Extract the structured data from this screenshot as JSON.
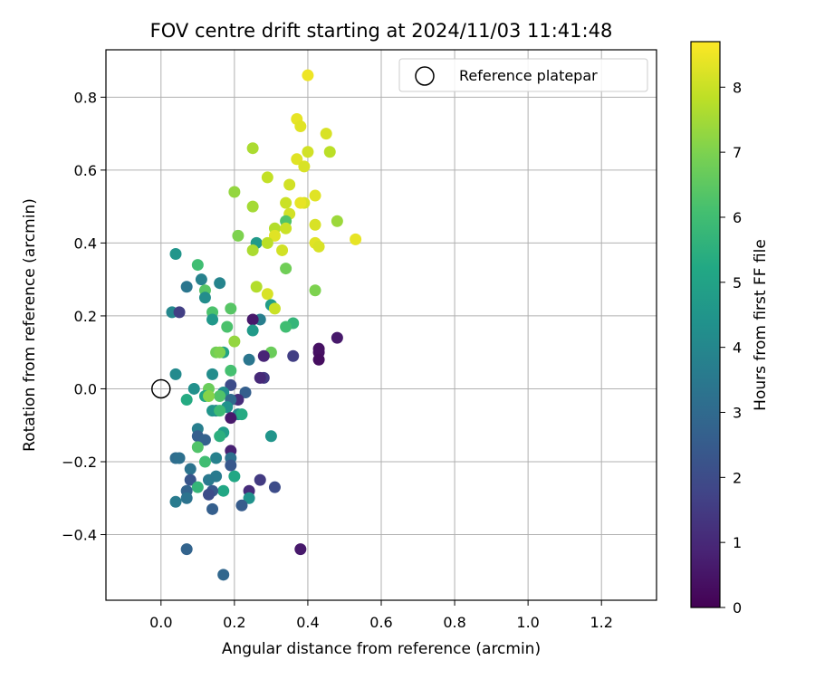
{
  "chart_data": {
    "type": "scatter",
    "title": "FOV centre drift starting at 2024/11/03 11:41:48",
    "xlabel": "Angular distance from reference (arcmin)",
    "ylabel": "Rotation from reference (arcmin)",
    "xlim": [
      -0.15,
      1.35
    ],
    "ylim": [
      -0.58,
      0.93
    ],
    "xticks": [
      0.0,
      0.2,
      0.4,
      0.6,
      0.8,
      1.0,
      1.2
    ],
    "xtick_labels": [
      "0.0",
      "0.2",
      "0.4",
      "0.6",
      "0.8",
      "1.0",
      "1.2"
    ],
    "yticks": [
      -0.4,
      -0.2,
      0.0,
      0.2,
      0.4,
      0.6,
      0.8
    ],
    "ytick_labels": [
      "−0.4",
      "−0.2",
      "0.0",
      "0.2",
      "0.4",
      "0.6",
      "0.8"
    ],
    "grid": true,
    "legend": {
      "position": "top-right",
      "entries": [
        "Reference platepar"
      ]
    },
    "colorbar": {
      "label": "Hours from first FF file",
      "min": 0,
      "max": 8.7,
      "ticks": [
        0,
        1,
        2,
        3,
        4,
        5,
        6,
        7,
        8
      ],
      "tick_labels": [
        "0",
        "1",
        "2",
        "3",
        "4",
        "5",
        "6",
        "7",
        "8"
      ],
      "colormap": "viridis"
    },
    "reference": {
      "x": 0.0,
      "y": 0.0,
      "label": "Reference platepar"
    },
    "points": [
      [
        0.4,
        0.86,
        8.5
      ],
      [
        0.37,
        0.74,
        8.4
      ],
      [
        0.38,
        0.72,
        8.3
      ],
      [
        0.45,
        0.7,
        8.2
      ],
      [
        0.25,
        0.66,
        7.6
      ],
      [
        0.4,
        0.65,
        8.1
      ],
      [
        0.46,
        0.65,
        7.8
      ],
      [
        0.37,
        0.63,
        8.3
      ],
      [
        0.39,
        0.61,
        8.2
      ],
      [
        0.29,
        0.58,
        7.9
      ],
      [
        0.35,
        0.56,
        8.1
      ],
      [
        0.2,
        0.54,
        7.3
      ],
      [
        0.42,
        0.53,
        8.3
      ],
      [
        0.39,
        0.51,
        8.2
      ],
      [
        0.34,
        0.51,
        8.0
      ],
      [
        0.38,
        0.51,
        8.4
      ],
      [
        0.25,
        0.5,
        7.5
      ],
      [
        0.35,
        0.48,
        8.1
      ],
      [
        0.34,
        0.46,
        6.3
      ],
      [
        0.48,
        0.46,
        7.4
      ],
      [
        0.42,
        0.45,
        8.2
      ],
      [
        0.31,
        0.44,
        7.7
      ],
      [
        0.34,
        0.44,
        8.0
      ],
      [
        0.31,
        0.42,
        8.3
      ],
      [
        0.21,
        0.42,
        7.0
      ],
      [
        0.53,
        0.41,
        8.4
      ],
      [
        0.26,
        0.4,
        4.7
      ],
      [
        0.42,
        0.4,
        8.3
      ],
      [
        0.29,
        0.4,
        7.8
      ],
      [
        0.43,
        0.39,
        8.2
      ],
      [
        0.33,
        0.38,
        8.1
      ],
      [
        0.25,
        0.38,
        7.6
      ],
      [
        0.04,
        0.37,
        4.5
      ],
      [
        0.1,
        0.34,
        6.0
      ],
      [
        0.34,
        0.33,
        6.8
      ],
      [
        0.11,
        0.3,
        3.8
      ],
      [
        0.16,
        0.29,
        3.9
      ],
      [
        0.07,
        0.28,
        3.4
      ],
      [
        0.26,
        0.28,
        7.7
      ],
      [
        0.42,
        0.27,
        7.0
      ],
      [
        0.12,
        0.27,
        6.4
      ],
      [
        0.29,
        0.26,
        8.2
      ],
      [
        0.12,
        0.25,
        4.2
      ],
      [
        0.3,
        0.23,
        4.8
      ],
      [
        0.19,
        0.22,
        6.4
      ],
      [
        0.31,
        0.22,
        8.0
      ],
      [
        0.03,
        0.21,
        4.0
      ],
      [
        0.05,
        0.21,
        1.6
      ],
      [
        0.14,
        0.21,
        6.2
      ],
      [
        0.27,
        0.19,
        3.7
      ],
      [
        0.25,
        0.19,
        0.6
      ],
      [
        0.14,
        0.19,
        4.6
      ],
      [
        0.36,
        0.18,
        5.7
      ],
      [
        0.34,
        0.17,
        6.0
      ],
      [
        0.18,
        0.17,
        6.2
      ],
      [
        0.25,
        0.16,
        4.7
      ],
      [
        0.48,
        0.14,
        0.6
      ],
      [
        0.2,
        0.13,
        7.3
      ],
      [
        0.43,
        0.11,
        0.4
      ],
      [
        0.3,
        0.1,
        6.7
      ],
      [
        0.17,
        0.1,
        5.0
      ],
      [
        0.15,
        0.1,
        6.8
      ],
      [
        0.16,
        0.1,
        7.0
      ],
      [
        0.43,
        0.1,
        0.4
      ],
      [
        0.36,
        0.09,
        1.6
      ],
      [
        0.28,
        0.09,
        0.9
      ],
      [
        0.43,
        0.08,
        0.3
      ],
      [
        0.24,
        0.08,
        3.4
      ],
      [
        0.19,
        0.05,
        6.1
      ],
      [
        0.04,
        0.04,
        4.1
      ],
      [
        0.14,
        0.04,
        4.2
      ],
      [
        0.28,
        0.03,
        1.5
      ],
      [
        0.27,
        0.03,
        1.0
      ],
      [
        0.19,
        0.01,
        2.0
      ],
      [
        0.09,
        0.0,
        4.3
      ],
      [
        0.13,
        0.0,
        6.7
      ],
      [
        0.23,
        -0.01,
        2.6
      ],
      [
        0.17,
        -0.01,
        4.3
      ],
      [
        0.12,
        -0.02,
        5.1
      ],
      [
        0.16,
        -0.02,
        6.3
      ],
      [
        0.13,
        -0.02,
        7.1
      ],
      [
        0.07,
        -0.03,
        5.3
      ],
      [
        0.21,
        -0.03,
        1.1
      ],
      [
        0.19,
        -0.03,
        3.0
      ],
      [
        0.18,
        -0.05,
        4.4
      ],
      [
        0.15,
        -0.06,
        3.6
      ],
      [
        0.14,
        -0.06,
        4.5
      ],
      [
        0.16,
        -0.06,
        5.9
      ],
      [
        0.21,
        -0.07,
        4.0
      ],
      [
        0.22,
        -0.07,
        5.3
      ],
      [
        0.19,
        -0.08,
        0.6
      ],
      [
        0.1,
        -0.11,
        3.7
      ],
      [
        0.17,
        -0.12,
        4.8
      ],
      [
        0.16,
        -0.13,
        5.5
      ],
      [
        0.1,
        -0.13,
        2.6
      ],
      [
        0.3,
        -0.13,
        4.5
      ],
      [
        0.12,
        -0.14,
        2.7
      ],
      [
        0.1,
        -0.16,
        6.3
      ],
      [
        0.19,
        -0.17,
        0.8
      ],
      [
        0.04,
        -0.19,
        3.1
      ],
      [
        0.05,
        -0.19,
        3.2
      ],
      [
        0.15,
        -0.19,
        3.8
      ],
      [
        0.19,
        -0.19,
        3.2
      ],
      [
        0.12,
        -0.2,
        6.0
      ],
      [
        0.19,
        -0.21,
        2.4
      ],
      [
        0.08,
        -0.22,
        3.3
      ],
      [
        0.2,
        -0.24,
        5.2
      ],
      [
        0.15,
        -0.24,
        3.6
      ],
      [
        0.13,
        -0.25,
        3.5
      ],
      [
        0.27,
        -0.25,
        1.5
      ],
      [
        0.08,
        -0.25,
        2.3
      ],
      [
        0.1,
        -0.27,
        5.7
      ],
      [
        0.31,
        -0.27,
        2.0
      ],
      [
        0.17,
        -0.28,
        5.2
      ],
      [
        0.24,
        -0.28,
        1.1
      ],
      [
        0.07,
        -0.28,
        2.8
      ],
      [
        0.14,
        -0.28,
        2.4
      ],
      [
        0.13,
        -0.29,
        2.0
      ],
      [
        0.07,
        -0.3,
        3.3
      ],
      [
        0.24,
        -0.3,
        4.4
      ],
      [
        0.04,
        -0.31,
        3.6
      ],
      [
        0.22,
        -0.32,
        2.5
      ],
      [
        0.14,
        -0.33,
        2.6
      ],
      [
        0.38,
        -0.44,
        0.6
      ],
      [
        0.07,
        -0.44,
        2.8
      ],
      [
        0.17,
        -0.51,
        2.9
      ]
    ]
  }
}
